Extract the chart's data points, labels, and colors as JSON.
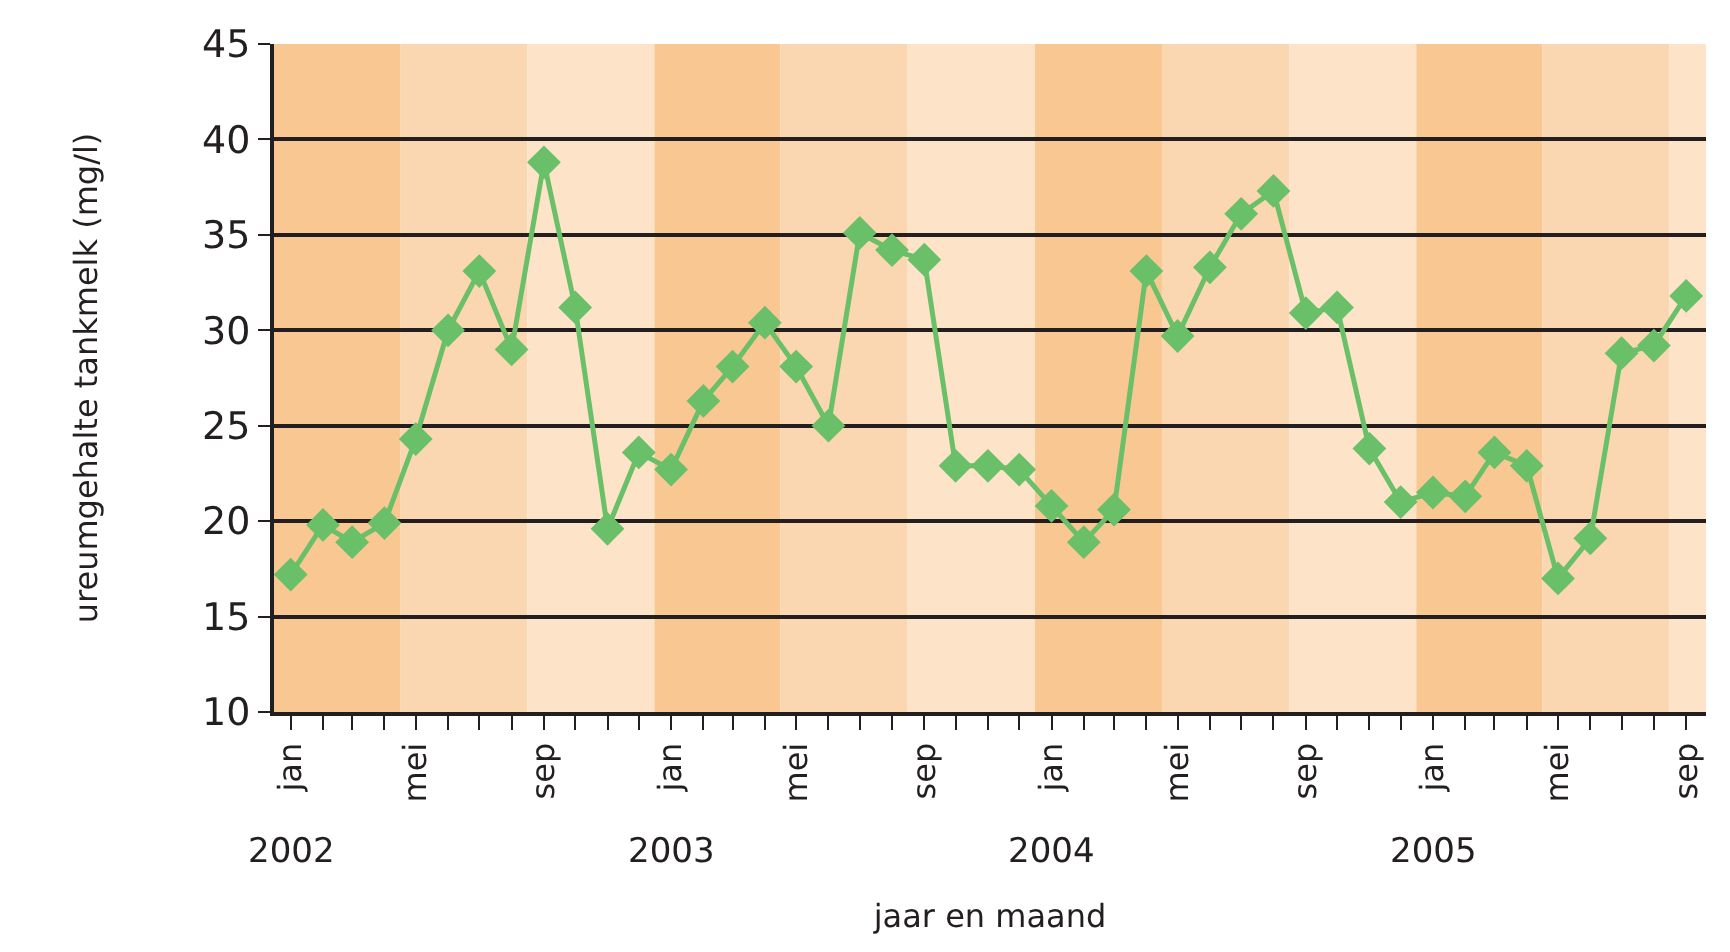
{
  "chart_data": {
    "type": "line",
    "ylabel": "ureumgehalte tankmelk (mg/l)",
    "xlabel": "jaar en maand",
    "annotations": [
      "2002",
      "2003",
      "2004",
      "2005"
    ],
    "x": [
      "2002-01",
      "2002-02",
      "2002-03",
      "2002-04",
      "2002-05",
      "2002-06",
      "2002-07",
      "2002-08",
      "2002-09",
      "2002-10",
      "2002-11",
      "2002-12",
      "2003-01",
      "2003-02",
      "2003-03",
      "2003-04",
      "2003-05",
      "2003-06",
      "2003-07",
      "2003-08",
      "2003-09",
      "2003-10",
      "2003-11",
      "2003-12",
      "2004-01",
      "2004-02",
      "2004-03",
      "2004-04",
      "2004-05",
      "2004-06",
      "2004-07",
      "2004-08",
      "2004-09",
      "2004-10",
      "2004-11",
      "2004-12",
      "2005-01",
      "2005-02",
      "2005-03",
      "2005-04",
      "2005-05",
      "2005-06",
      "2005-07",
      "2005-08",
      "2005-09"
    ],
    "series": [
      {
        "color": "#6abf69",
        "values": [
          17.2,
          19.8,
          18.9,
          19.9,
          24.3,
          30.0,
          33.1,
          29.0,
          38.8,
          31.2,
          19.6,
          23.6,
          22.7,
          26.3,
          28.1,
          30.4,
          28.1,
          25.0,
          35.1,
          34.2,
          33.7,
          22.9,
          22.9,
          22.7,
          20.8,
          18.9,
          20.6,
          33.1,
          29.7,
          33.3,
          36.1,
          37.3,
          30.9,
          31.2,
          23.8,
          21.0,
          21.5,
          21.3,
          23.6,
          22.9,
          17.0,
          19.1,
          28.8,
          29.2,
          31.8
        ]
      }
    ],
    "marker": "diamond",
    "line_style": "solid",
    "grid": "y",
    "ylim": [
      10,
      45
    ],
    "yticks": [
      10,
      15,
      20,
      25,
      30,
      35,
      40,
      45
    ],
    "xlim": [
      "2001-12-16",
      "2005-09-20"
    ],
    "xticks": [
      {
        "value": "2002-01",
        "label": "jan"
      },
      {
        "value": "2002-02",
        "label": null
      },
      {
        "value": "2002-03",
        "label": null
      },
      {
        "value": "2002-04",
        "label": null
      },
      {
        "value": "2002-05",
        "label": "mei"
      },
      {
        "value": "2002-06",
        "label": null
      },
      {
        "value": "2002-07",
        "label": null
      },
      {
        "value": "2002-08",
        "label": null
      },
      {
        "value": "2002-09",
        "label": "sep"
      },
      {
        "value": "2002-10",
        "label": null
      },
      {
        "value": "2002-11",
        "label": null
      },
      {
        "value": "2002-12",
        "label": null
      },
      {
        "value": "2003-01",
        "label": "jan"
      },
      {
        "value": "2003-02",
        "label": null
      },
      {
        "value": "2003-03",
        "label": null
      },
      {
        "value": "2003-04",
        "label": null
      },
      {
        "value": "2003-05",
        "label": "mei"
      },
      {
        "value": "2003-06",
        "label": null
      },
      {
        "value": "2003-07",
        "label": null
      },
      {
        "value": "2003-08",
        "label": null
      },
      {
        "value": "2003-09",
        "label": "sep"
      },
      {
        "value": "2003-10",
        "label": null
      },
      {
        "value": "2003-11",
        "label": null
      },
      {
        "value": "2003-12",
        "label": null
      },
      {
        "value": "2004-01",
        "label": "jan"
      },
      {
        "value": "2004-02",
        "label": null
      },
      {
        "value": "2004-03",
        "label": null
      },
      {
        "value": "2004-04",
        "label": null
      },
      {
        "value": "2004-05",
        "label": "mei"
      },
      {
        "value": "2004-06",
        "label": null
      },
      {
        "value": "2004-07",
        "label": null
      },
      {
        "value": "2004-08",
        "label": null
      },
      {
        "value": "2004-09",
        "label": "sep"
      },
      {
        "value": "2004-10",
        "label": null
      },
      {
        "value": "2004-11",
        "label": null
      },
      {
        "value": "2004-12",
        "label": null
      },
      {
        "value": "2005-01",
        "label": "jan"
      },
      {
        "value": "2005-02",
        "label": null
      },
      {
        "value": "2005-03",
        "label": null
      },
      {
        "value": "2005-04",
        "label": null
      },
      {
        "value": "2005-05",
        "label": "mei"
      },
      {
        "value": "2005-06",
        "label": null
      },
      {
        "value": "2005-07",
        "label": null
      },
      {
        "value": "2005-08",
        "label": null
      },
      {
        "value": "2005-09",
        "label": "sep"
      }
    ],
    "bands": [
      {
        "axis": "x",
        "from": "2001-12-16",
        "to": "2002-04-16",
        "color": "#f9c892"
      },
      {
        "axis": "x",
        "from": "2002-04-16",
        "to": "2002-08-16",
        "color": "#fad7b0"
      },
      {
        "axis": "x",
        "from": "2002-08-16",
        "to": "2002-12-16",
        "color": "#fde4c8"
      },
      {
        "axis": "x",
        "from": "2002-12-16",
        "to": "2003-04-16",
        "color": "#f9c892"
      },
      {
        "axis": "x",
        "from": "2003-04-16",
        "to": "2003-08-16",
        "color": "#fad7b0"
      },
      {
        "axis": "x",
        "from": "2003-08-16",
        "to": "2003-12-16",
        "color": "#fde4c8"
      },
      {
        "axis": "x",
        "from": "2003-12-16",
        "to": "2004-04-16",
        "color": "#f9c892"
      },
      {
        "axis": "x",
        "from": "2004-04-16",
        "to": "2004-08-16",
        "color": "#fad7b0"
      },
      {
        "axis": "x",
        "from": "2004-08-16",
        "to": "2004-12-16",
        "color": "#fde4c8"
      },
      {
        "axis": "x",
        "from": "2004-12-16",
        "to": "2005-04-16",
        "color": "#f9c892"
      },
      {
        "axis": "x",
        "from": "2005-04-16",
        "to": "2005-08-16",
        "color": "#fad7b0"
      },
      {
        "axis": "x",
        "from": "2005-08-16",
        "to": "2005-09-20",
        "color": "#fde4c8"
      }
    ]
  }
}
